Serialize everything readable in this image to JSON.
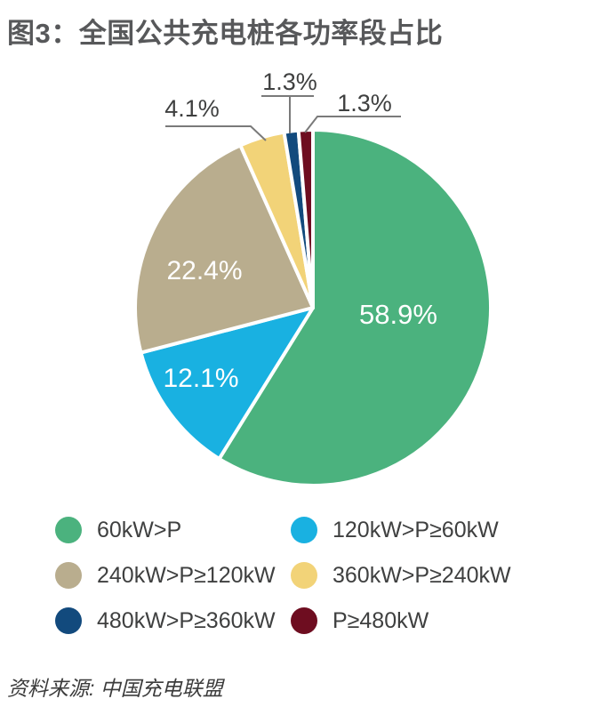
{
  "title": "图3：全国公共充电桩各功率段占比",
  "source": "资料来源: 中国充电联盟",
  "colors": {
    "title_text": "#57585a",
    "body_text": "#3f4040",
    "inside_label": "#ffffff",
    "callout_line": "#7a7a7a",
    "background": "#ffffff"
  },
  "chart_data": {
    "type": "pie",
    "title": "全国公共充电桩各功率段占比",
    "unit": "%",
    "start_position": "12-o-clock",
    "direction": "clockwise",
    "legend_position": "bottom-2-columns",
    "series": [
      {
        "label": "60kW>P",
        "value": 58.9,
        "display": "58.9%",
        "color": "#4bb27e",
        "label_placement": "inside"
      },
      {
        "label": "120kW>P≥60kW",
        "value": 12.1,
        "display": "12.1%",
        "color": "#19b1e1",
        "label_placement": "inside"
      },
      {
        "label": "240kW>P≥120kW",
        "value": 22.4,
        "display": "22.4%",
        "color": "#b9ad8e",
        "label_placement": "inside"
      },
      {
        "label": "360kW>P≥240kW",
        "value": 4.1,
        "display": "4.1%",
        "color": "#f2d378",
        "label_placement": "callout"
      },
      {
        "label": "480kW>P≥360kW",
        "value": 1.3,
        "display": "1.3%",
        "color": "#124a7d",
        "label_placement": "callout"
      },
      {
        "label": "P≥480kW",
        "value": 1.3,
        "display": "1.3%",
        "color": "#6e0d20",
        "label_placement": "callout"
      }
    ]
  }
}
